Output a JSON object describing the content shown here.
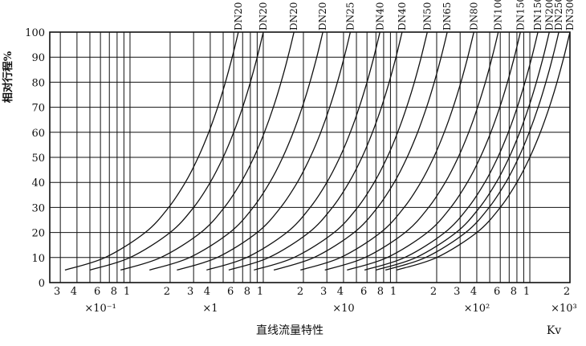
{
  "chart_data": {
    "type": "line",
    "title": "",
    "xlabel": "直线流量特性",
    "ylabel": "相对行程%",
    "x_axis_unit": "Kv",
    "x_scale": "log",
    "xlim": [
      0.25,
      2000
    ],
    "ylim": [
      0,
      100
    ],
    "grid": true,
    "y_ticks": [
      "0",
      "10",
      "20",
      "30",
      "40",
      "50",
      "60",
      "70",
      "80",
      "90",
      "100"
    ],
    "x_ticks": [
      {
        "value": 0.3,
        "label": "3"
      },
      {
        "value": 0.4,
        "label": "4"
      },
      {
        "value": 0.6,
        "label": "6"
      },
      {
        "value": 0.8,
        "label": "8"
      },
      {
        "value": 1,
        "label": "1"
      },
      {
        "value": 2,
        "label": "2"
      },
      {
        "value": 3,
        "label": "3"
      },
      {
        "value": 4,
        "label": "4"
      },
      {
        "value": 6,
        "label": "6"
      },
      {
        "value": 8,
        "label": "8"
      },
      {
        "value": 10,
        "label": "1"
      },
      {
        "value": 20,
        "label": "2"
      },
      {
        "value": 30,
        "label": "3"
      },
      {
        "value": 40,
        "label": "4"
      },
      {
        "value": 60,
        "label": "6"
      },
      {
        "value": 80,
        "label": "8"
      },
      {
        "value": 100,
        "label": "1"
      },
      {
        "value": 200,
        "label": "2"
      },
      {
        "value": 300,
        "label": "3"
      },
      {
        "value": 400,
        "label": "4"
      },
      {
        "value": 600,
        "label": "6"
      },
      {
        "value": 800,
        "label": "8"
      },
      {
        "value": 1000,
        "label": "1"
      },
      {
        "value": 2000,
        "label": "2"
      }
    ],
    "multipliers": [
      {
        "value": 0.6,
        "label": "×10⁻¹"
      },
      {
        "value": 4,
        "label": "×1"
      },
      {
        "value": 40,
        "label": "×10"
      },
      {
        "value": 400,
        "label": "×10²"
      },
      {
        "value": 1800,
        "label": "×10³"
      }
    ],
    "grid_x": [
      0.3,
      0.4,
      0.5,
      0.6,
      0.7,
      0.8,
      0.9,
      1,
      2,
      3,
      4,
      5,
      6,
      7,
      8,
      9,
      10,
      20,
      30,
      40,
      50,
      60,
      70,
      80,
      90,
      100,
      200,
      300,
      400,
      500,
      600,
      700,
      800,
      900,
      1000
    ],
    "series": [
      {
        "name": "DN20",
        "kv100": 6.5
      },
      {
        "name": "DN20",
        "kv100": 10
      },
      {
        "name": "DN20",
        "kv100": 17
      },
      {
        "name": "DN20",
        "kv100": 28
      },
      {
        "name": "DN25",
        "kv100": 45
      },
      {
        "name": "DN40",
        "kv100": 75
      },
      {
        "name": "DN40",
        "kv100": 110
      },
      {
        "name": "DN50",
        "kv100": 170
      },
      {
        "name": "DN65",
        "kv100": 240
      },
      {
        "name": "DN80",
        "kv100": 380
      },
      {
        "name": "DN100",
        "kv100": 580
      },
      {
        "name": "DN150",
        "kv100": 850
      },
      {
        "name": "DN150",
        "kv100": 1150
      },
      {
        "name": "DN200",
        "kv100": 1400
      },
      {
        "name": "DN250",
        "kv100": 1650
      },
      {
        "name": "DN300",
        "kv100": 2000
      }
    ],
    "curve_y_values": [
      5,
      10,
      20,
      30,
      40,
      50,
      60,
      70,
      80,
      90,
      100
    ]
  }
}
